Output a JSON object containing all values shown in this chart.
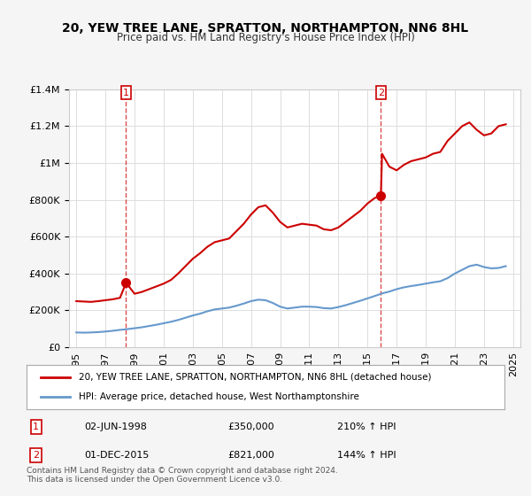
{
  "title": "20, YEW TREE LANE, SPRATTON, NORTHAMPTON, NN6 8HL",
  "subtitle": "Price paid vs. HM Land Registry's House Price Index (HPI)",
  "legend_line1": "20, YEW TREE LANE, SPRATTON, NORTHAMPTON, NN6 8HL (detached house)",
  "legend_line2": "HPI: Average price, detached house, West Northamptonshire",
  "footnote": "Contains HM Land Registry data © Crown copyright and database right 2024.\nThis data is licensed under the Open Government Licence v3.0.",
  "annotation1_label": "1",
  "annotation1_date": "02-JUN-1998",
  "annotation1_price": "£350,000",
  "annotation1_hpi": "210% ↑ HPI",
  "annotation2_label": "2",
  "annotation2_date": "01-DEC-2015",
  "annotation2_price": "£821,000",
  "annotation2_hpi": "144% ↑ HPI",
  "red_color": "#cc0000",
  "blue_color": "#6699cc",
  "annotation_color": "#cc0000",
  "background_color": "#f5f5f5",
  "plot_bg_color": "#ffffff",
  "ylim": [
    0,
    1400000
  ],
  "yticks": [
    0,
    200000,
    400000,
    600000,
    800000,
    1000000,
    1200000,
    1400000
  ],
  "sale1_x": 1998.42,
  "sale1_y": 350000,
  "sale2_x": 2015.92,
  "sale2_y": 821000,
  "vline1_x": 1998.42,
  "vline2_x": 2015.92,
  "red_x": [
    1995.0,
    1995.5,
    1996.0,
    1996.5,
    1997.0,
    1997.5,
    1998.0,
    1998.42,
    1999.0,
    1999.5,
    2000.0,
    2000.5,
    2001.0,
    2001.5,
    2002.0,
    2002.5,
    2003.0,
    2003.5,
    2004.0,
    2004.5,
    2005.0,
    2005.5,
    2006.0,
    2006.5,
    2007.0,
    2007.5,
    2008.0,
    2008.5,
    2009.0,
    2009.5,
    2010.0,
    2010.5,
    2011.0,
    2011.5,
    2012.0,
    2012.5,
    2013.0,
    2013.5,
    2014.0,
    2014.5,
    2015.0,
    2015.5,
    2015.92,
    2016.0,
    2016.5,
    2017.0,
    2017.5,
    2018.0,
    2018.5,
    2019.0,
    2019.5,
    2020.0,
    2020.5,
    2021.0,
    2021.5,
    2022.0,
    2022.5,
    2023.0,
    2023.5,
    2024.0,
    2024.5
  ],
  "red_y": [
    250000,
    248000,
    246000,
    250000,
    255000,
    260000,
    268000,
    350000,
    290000,
    300000,
    315000,
    330000,
    345000,
    365000,
    400000,
    440000,
    480000,
    510000,
    545000,
    570000,
    580000,
    590000,
    630000,
    670000,
    720000,
    760000,
    770000,
    730000,
    680000,
    650000,
    660000,
    670000,
    665000,
    660000,
    640000,
    635000,
    650000,
    680000,
    710000,
    740000,
    780000,
    810000,
    821000,
    1050000,
    980000,
    960000,
    990000,
    1010000,
    1020000,
    1030000,
    1050000,
    1060000,
    1120000,
    1160000,
    1200000,
    1220000,
    1180000,
    1150000,
    1160000,
    1200000,
    1210000
  ],
  "blue_x": [
    1995.0,
    1995.5,
    1996.0,
    1996.5,
    1997.0,
    1997.5,
    1998.0,
    1998.5,
    1999.0,
    1999.5,
    2000.0,
    2000.5,
    2001.0,
    2001.5,
    2002.0,
    2002.5,
    2003.0,
    2003.5,
    2004.0,
    2004.5,
    2005.0,
    2005.5,
    2006.0,
    2006.5,
    2007.0,
    2007.5,
    2008.0,
    2008.5,
    2009.0,
    2009.5,
    2010.0,
    2010.5,
    2011.0,
    2011.5,
    2012.0,
    2012.5,
    2013.0,
    2013.5,
    2014.0,
    2014.5,
    2015.0,
    2015.5,
    2016.0,
    2016.5,
    2017.0,
    2017.5,
    2018.0,
    2018.5,
    2019.0,
    2019.5,
    2020.0,
    2020.5,
    2021.0,
    2021.5,
    2022.0,
    2022.5,
    2023.0,
    2023.5,
    2024.0,
    2024.5
  ],
  "blue_y": [
    80000,
    79000,
    80000,
    82000,
    85000,
    89000,
    94000,
    98000,
    103000,
    108000,
    115000,
    122000,
    130000,
    138000,
    148000,
    160000,
    172000,
    182000,
    195000,
    205000,
    210000,
    215000,
    225000,
    237000,
    250000,
    258000,
    255000,
    240000,
    220000,
    210000,
    215000,
    220000,
    220000,
    218000,
    212000,
    210000,
    218000,
    228000,
    240000,
    252000,
    265000,
    278000,
    292000,
    302000,
    315000,
    325000,
    332000,
    338000,
    345000,
    352000,
    358000,
    375000,
    400000,
    420000,
    440000,
    448000,
    435000,
    428000,
    430000,
    440000
  ],
  "xticks": [
    1995,
    1997,
    1999,
    2001,
    2003,
    2005,
    2007,
    2009,
    2011,
    2013,
    2015,
    2017,
    2019,
    2021,
    2023,
    2025
  ],
  "xlim": [
    1994.5,
    2025.5
  ]
}
